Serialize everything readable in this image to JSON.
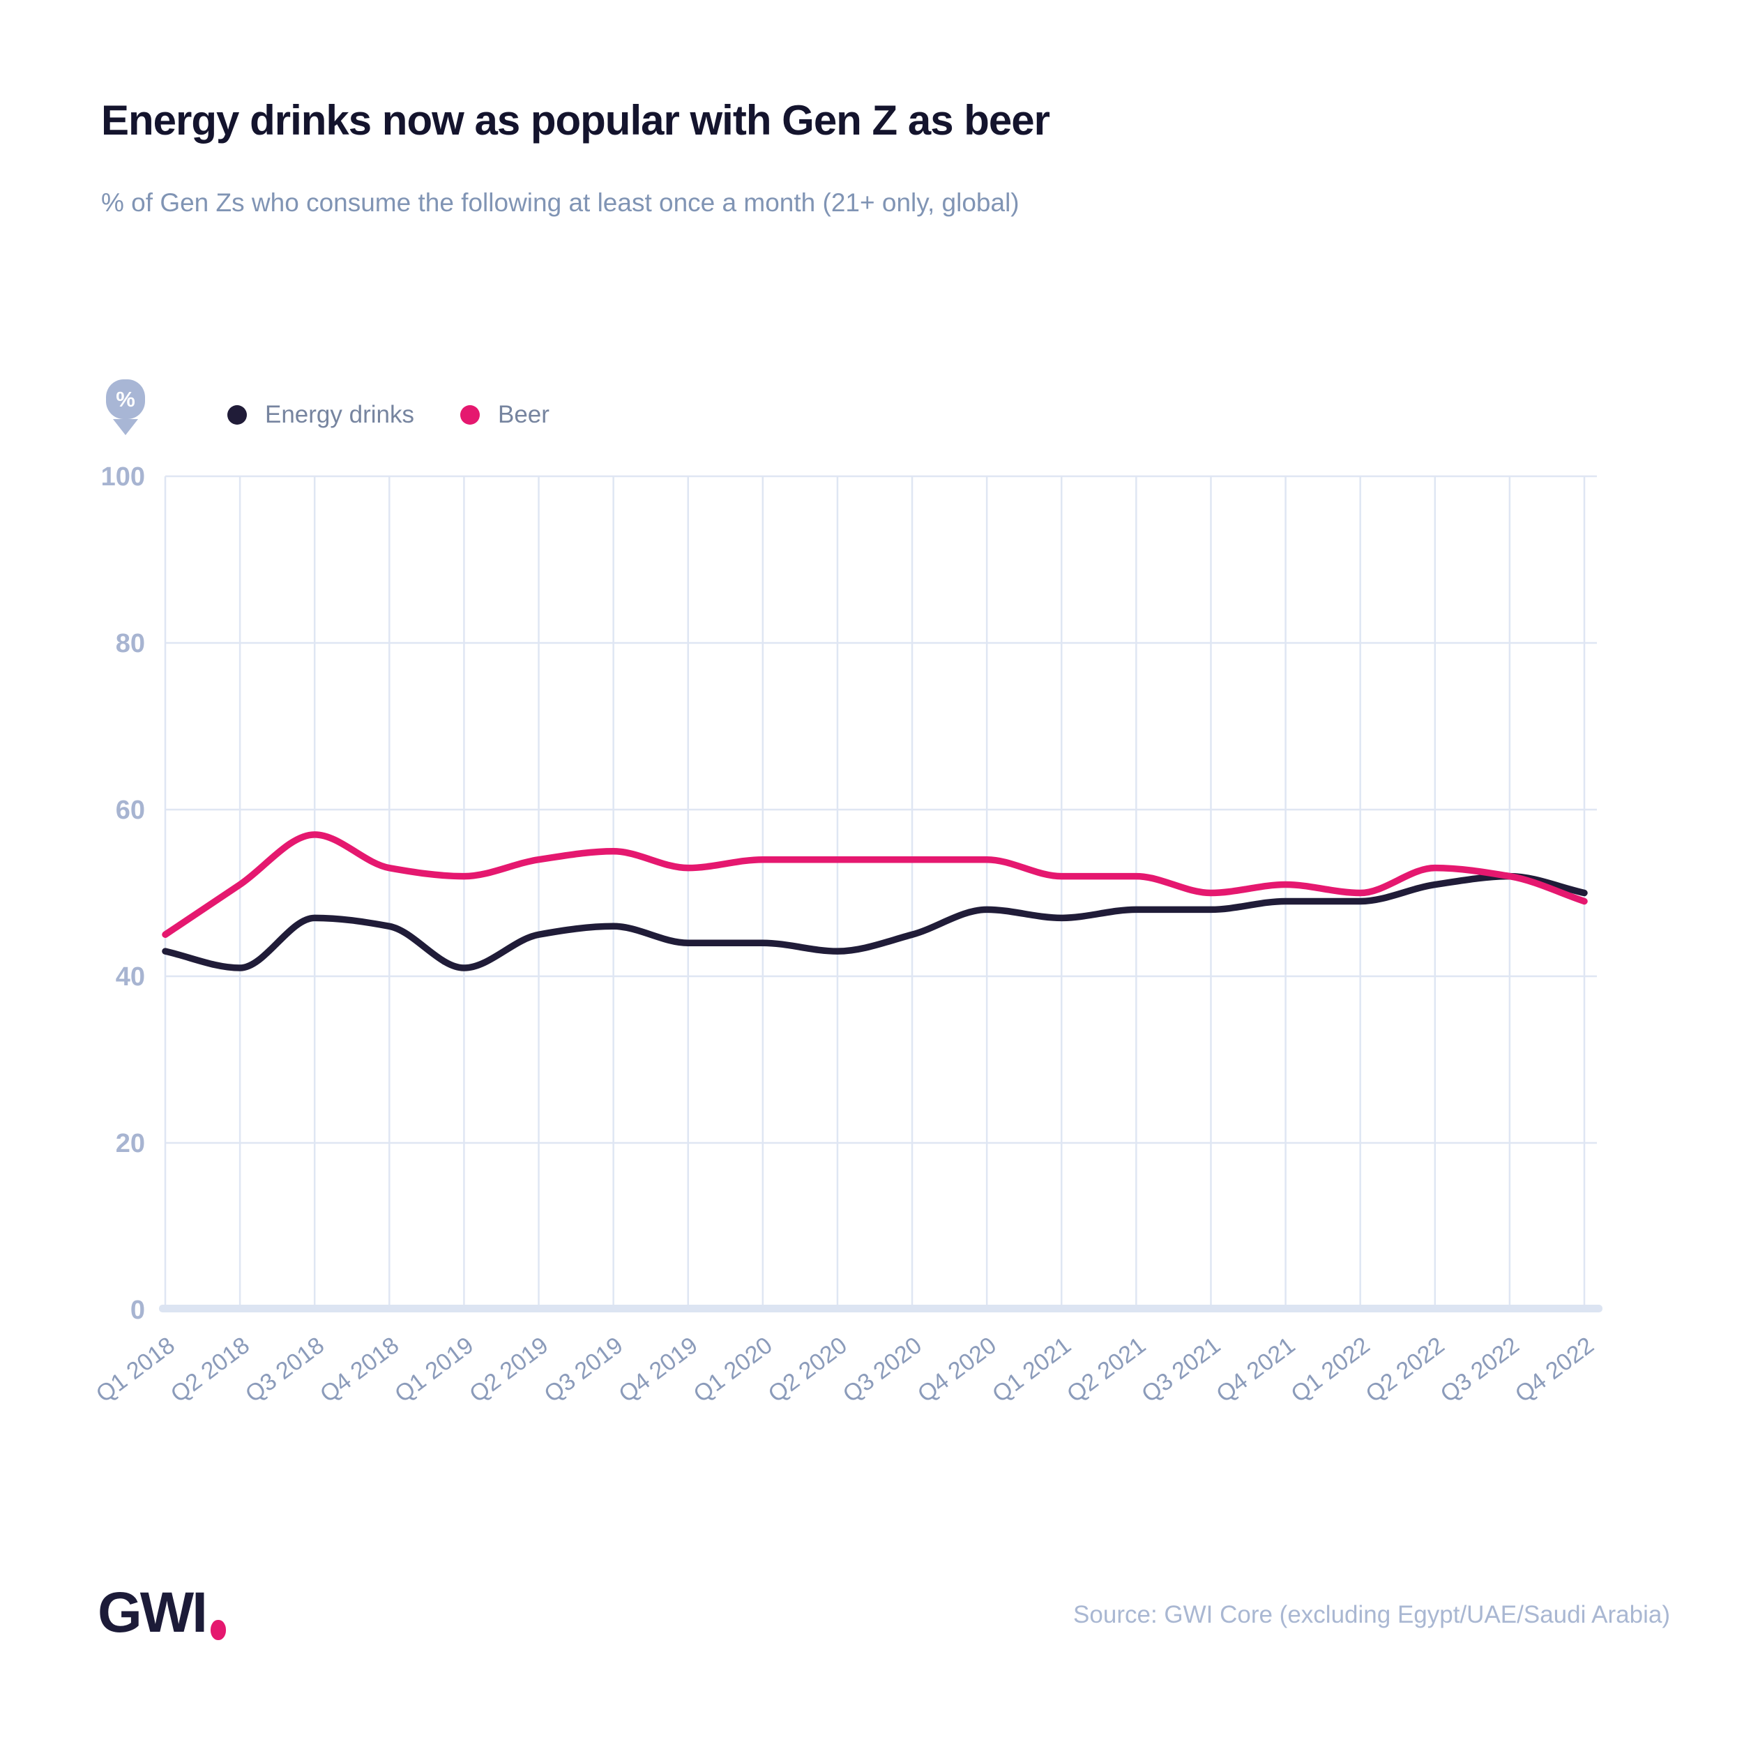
{
  "header": {
    "title": "Energy drinks now as popular with Gen Z as beer",
    "subtitle": "% of Gen Zs who consume the following at least once a month (21+ only, global)"
  },
  "badge": {
    "symbol": "%"
  },
  "chart_data": {
    "type": "line",
    "categories": [
      "Q1 2018",
      "Q2 2018",
      "Q3 2018",
      "Q4 2018",
      "Q1 2019",
      "Q2 2019",
      "Q3 2019",
      "Q4 2019",
      "Q1 2020",
      "Q2 2020",
      "Q3 2020",
      "Q4 2020",
      "Q1 2021",
      "Q2 2021",
      "Q3 2021",
      "Q4 2021",
      "Q1 2022",
      "Q2 2022",
      "Q3 2022",
      "Q4 2022"
    ],
    "series": [
      {
        "name": "Energy drinks",
        "color": "#201c38",
        "values": [
          43,
          41,
          47,
          46,
          41,
          45,
          46,
          44,
          44,
          43,
          45,
          48,
          47,
          48,
          48,
          49,
          49,
          51,
          52,
          50
        ]
      },
      {
        "name": "Beer",
        "color": "#e5186f",
        "values": [
          45,
          51,
          57,
          53,
          52,
          54,
          55,
          53,
          54,
          54,
          54,
          54,
          52,
          52,
          50,
          51,
          50,
          53,
          52,
          49
        ]
      }
    ],
    "title": "Energy drinks now as popular with Gen Z as beer",
    "xlabel": "",
    "ylabel": "%",
    "ylim": [
      0,
      100
    ],
    "yticks": [
      0,
      20,
      40,
      60,
      80,
      100
    ],
    "grid": true,
    "legend_position": "top-left"
  },
  "footer": {
    "logo": "GWI",
    "source": "Source: GWI Core (excluding Egypt/UAE/Saudi Arabia)"
  },
  "colors": {
    "accent_pink": "#e5186f",
    "brand_navy": "#201c38",
    "title_text": "#14142d",
    "subtitle_text": "#8094b4",
    "tick_text": "#a7b4d1",
    "grid_line": "#dfe6f3"
  }
}
